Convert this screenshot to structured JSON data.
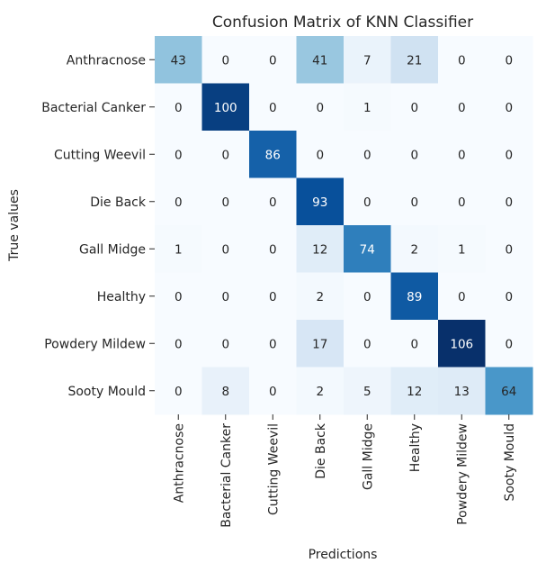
{
  "chart_data": {
    "type": "heatmap",
    "title": "Confusion Matrix of KNN Classifier",
    "xlabel": "Predictions",
    "ylabel": "True values",
    "row_labels": [
      "Anthracnose",
      "Bacterial Canker",
      "Cutting Weevil",
      "Die Back",
      "Gall Midge",
      "Healthy",
      "Powdery Mildew",
      "Sooty Mould"
    ],
    "col_labels": [
      "Anthracnose",
      "Bacterial Canker",
      "Cutting Weevil",
      "Die Back",
      "Gall Midge",
      "Healthy",
      "Powdery Mildew",
      "Sooty Mould"
    ],
    "values": [
      [
        43,
        0,
        0,
        41,
        7,
        21,
        0,
        0
      ],
      [
        0,
        100,
        0,
        0,
        1,
        0,
        0,
        0
      ],
      [
        0,
        0,
        86,
        0,
        0,
        0,
        0,
        0
      ],
      [
        0,
        0,
        0,
        93,
        0,
        0,
        0,
        0
      ],
      [
        1,
        0,
        0,
        12,
        74,
        2,
        1,
        0
      ],
      [
        0,
        0,
        0,
        2,
        0,
        89,
        0,
        0
      ],
      [
        0,
        0,
        0,
        17,
        0,
        0,
        106,
        0
      ],
      [
        0,
        8,
        0,
        2,
        5,
        12,
        13,
        64
      ]
    ],
    "vmin": 0,
    "vmax": 106,
    "colormap": "Blues",
    "colorbar": false,
    "grid": false
  }
}
